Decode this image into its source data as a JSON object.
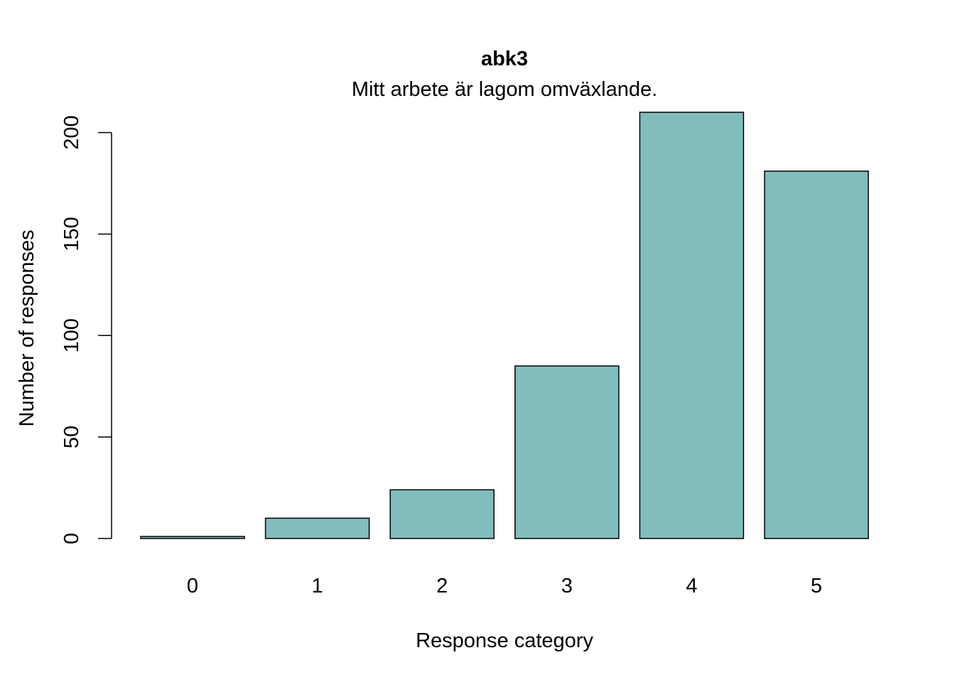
{
  "chart_data": {
    "type": "bar",
    "title": "abk3",
    "subtitle": "Mitt arbete är lagom omväxlande.",
    "xlabel": "Response category",
    "ylabel": "Number of responses",
    "categories": [
      "0",
      "1",
      "2",
      "3",
      "4",
      "5"
    ],
    "values": [
      1,
      10,
      24,
      85,
      210,
      181
    ],
    "ylim": [
      0,
      210
    ],
    "yticks": [
      0,
      50,
      100,
      150,
      200
    ],
    "bar_color": "#80BDBC",
    "grid": false,
    "legend": "none"
  }
}
